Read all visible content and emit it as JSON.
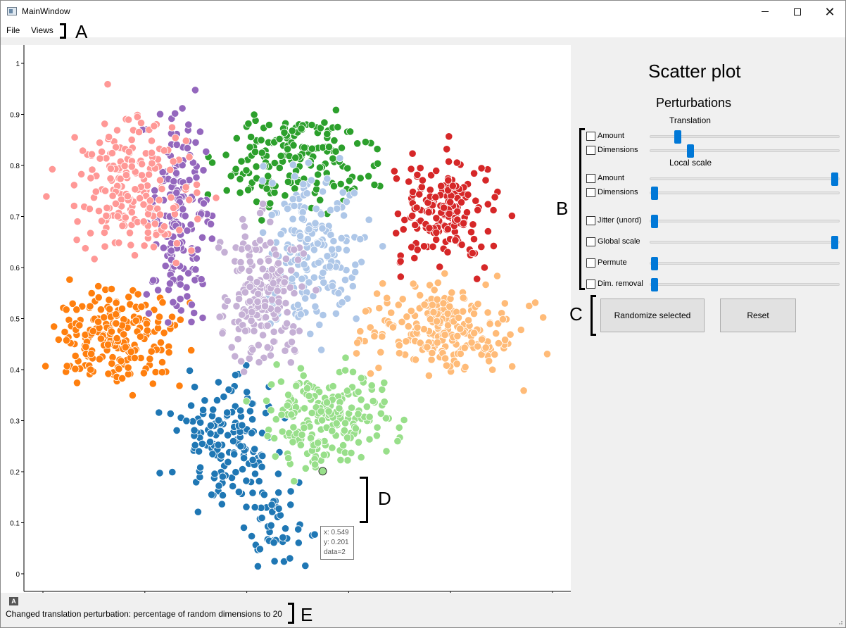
{
  "window": {
    "title": "MainWindow",
    "controls": {
      "minimize": "minimize",
      "maximize": "maximize",
      "close": "✕"
    }
  },
  "menubar": {
    "items": [
      {
        "label": "File"
      },
      {
        "label": "Views"
      }
    ]
  },
  "chart_data": {
    "type": "scatter",
    "xlim": [
      0,
      1
    ],
    "ylim": [
      0,
      1
    ],
    "x_ticks": [
      "0",
      "0.2",
      "0.4",
      "0.6",
      "0.8",
      "1"
    ],
    "y_ticks": [
      "0",
      "0.1",
      "0.2",
      "0.3",
      "0.4",
      "0.5",
      "0.6",
      "0.7",
      "0.8",
      "0.9",
      "1"
    ],
    "grid": false,
    "clusters": [
      {
        "color": "#1f77b4",
        "cx": 0.36,
        "cy": 0.26,
        "n": 150,
        "sx": 0.05,
        "sy": 0.06
      },
      {
        "color": "#1f77b4",
        "cx": 0.47,
        "cy": 0.08,
        "n": 45,
        "sx": 0.03,
        "sy": 0.04
      },
      {
        "color": "#ff7f0e",
        "cx": 0.14,
        "cy": 0.46,
        "n": 210,
        "sx": 0.06,
        "sy": 0.045
      },
      {
        "color": "#2ca02c",
        "cx": 0.5,
        "cy": 0.81,
        "n": 180,
        "sx": 0.07,
        "sy": 0.05
      },
      {
        "color": "#d62728",
        "cx": 0.79,
        "cy": 0.71,
        "n": 180,
        "sx": 0.05,
        "sy": 0.05
      },
      {
        "color": "#9467bd",
        "cx": 0.27,
        "cy": 0.7,
        "n": 170,
        "sx": 0.03,
        "sy": 0.1
      },
      {
        "color": "#ff9896",
        "cx": 0.17,
        "cy": 0.76,
        "n": 200,
        "sx": 0.06,
        "sy": 0.07
      },
      {
        "color": "#aec7e8",
        "cx": 0.53,
        "cy": 0.64,
        "n": 200,
        "sx": 0.05,
        "sy": 0.08
      },
      {
        "color": "#c5b0d5",
        "cx": 0.43,
        "cy": 0.55,
        "n": 190,
        "sx": 0.04,
        "sy": 0.07
      },
      {
        "color": "#ffbb78",
        "cx": 0.78,
        "cy": 0.48,
        "n": 230,
        "sx": 0.07,
        "sy": 0.04
      },
      {
        "color": "#98df8a",
        "cx": 0.56,
        "cy": 0.31,
        "n": 210,
        "sx": 0.06,
        "sy": 0.05
      }
    ],
    "highlight_point": {
      "x": 0.549,
      "y": 0.201,
      "data": 2,
      "color": "#98df8a"
    }
  },
  "tooltip": {
    "x": "x: 0.549",
    "y": "y: 0.201",
    "data": "data=2"
  },
  "panel": {
    "title": "Scatter plot",
    "subtitle": "Perturbations",
    "translation_label": "Translation",
    "local_scale_label": "Local scale",
    "rows": [
      {
        "label": "Amount",
        "checked": false,
        "value": 0.13
      },
      {
        "label": "Dimensions",
        "checked": false,
        "value": 0.2
      },
      {
        "label": "Amount",
        "checked": false,
        "value": 1.0
      },
      {
        "label": "Dimensions",
        "checked": false,
        "value": 0.0
      },
      {
        "label": "Jitter (unord)",
        "checked": false,
        "value": 0.0
      },
      {
        "label": "Global scale",
        "checked": false,
        "value": 1.0
      },
      {
        "label": "Permute",
        "checked": false,
        "value": 0.0
      },
      {
        "label": "Dim. removal",
        "checked": false,
        "value": 0.0
      }
    ],
    "randomize_label": "Randomize selected",
    "reset_label": "Reset"
  },
  "status": {
    "message": "Changed translation perturbation: percentage of random dimensions to 20",
    "icon": "A"
  },
  "annotations": {
    "A": "A",
    "B": "B",
    "C": "C",
    "D": "D",
    "E": "E"
  }
}
